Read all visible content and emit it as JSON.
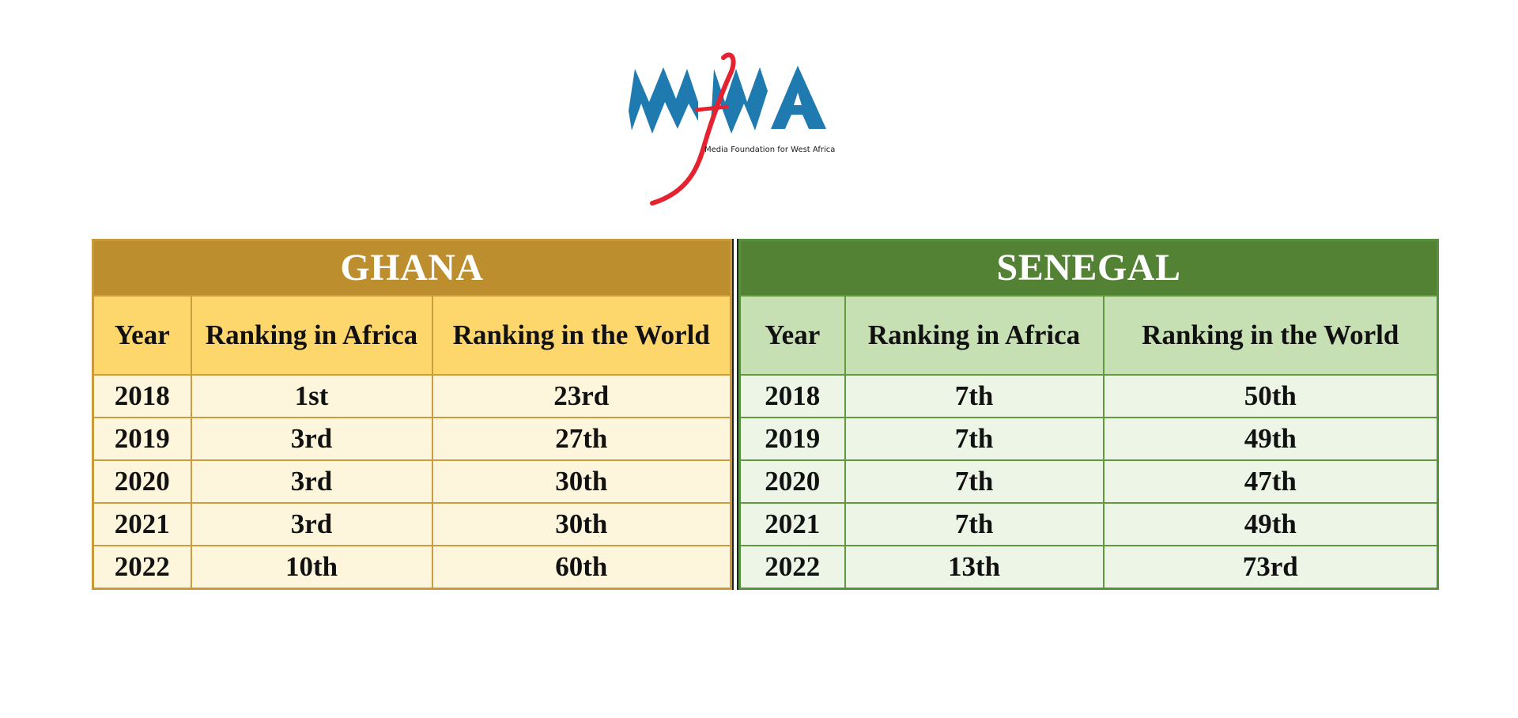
{
  "logo": {
    "letters": "mfWA",
    "tagline": "Media Foundation for West Africa",
    "colors": {
      "blue": "#1f7ab0",
      "red": "#e52330"
    }
  },
  "ghana": {
    "title": "GHANA",
    "headers": {
      "year": "Year",
      "africa": "Ranking in Africa",
      "world": "Ranking in the World"
    },
    "rows": [
      {
        "year": "2018",
        "africa": "1st",
        "world": "23rd"
      },
      {
        "year": "2019",
        "africa": "3rd",
        "world": "27th"
      },
      {
        "year": "2020",
        "africa": "3rd",
        "world": "30th"
      },
      {
        "year": "2021",
        "africa": "3rd",
        "world": "30th"
      },
      {
        "year": "2022",
        "africa": "10th",
        "world": "60th"
      }
    ],
    "colors": {
      "title_bg": "#bd8e2e",
      "header_bg": "#fdd66c",
      "cell_bg": "#fef6dc",
      "border": "#cc9d3f"
    }
  },
  "senegal": {
    "title": "SENEGAL",
    "headers": {
      "year": "Year",
      "africa": "Ranking in Africa",
      "world": "Ranking in the World"
    },
    "rows": [
      {
        "year": "2018",
        "africa": "7th",
        "world": "50th"
      },
      {
        "year": "2019",
        "africa": "7th",
        "world": "49th"
      },
      {
        "year": "2020",
        "africa": "7th",
        "world": "47th"
      },
      {
        "year": "2021",
        "africa": "7th",
        "world": "49th"
      },
      {
        "year": "2022",
        "africa": "13th",
        "world": "73rd"
      }
    ],
    "colors": {
      "title_bg": "#548235",
      "header_bg": "#c6e0b4",
      "cell_bg": "#edf5e7",
      "border": "#61993f"
    }
  }
}
